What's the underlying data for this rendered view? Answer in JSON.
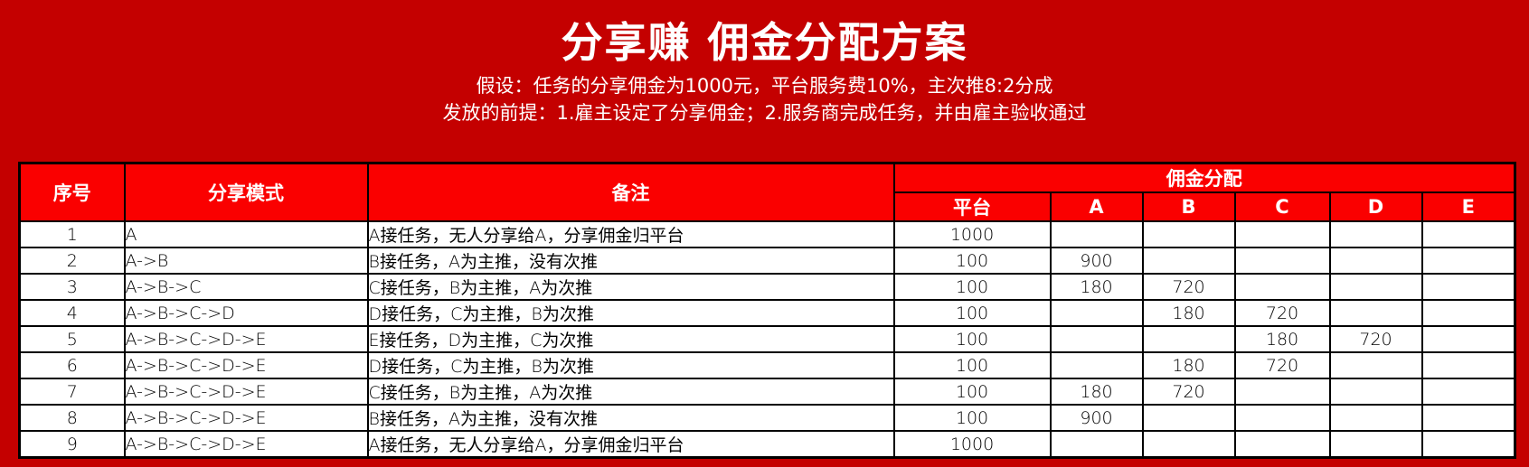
{
  "header": {
    "title": "分享赚 佣金分配方案",
    "subtitle_line1": "假设：任务的分享佣金为1000元，平台服务费10%，主次推8:2分成",
    "subtitle_line2": "发放的前提：1.雇主设定了分享佣金；2.服务商完成任务，并由雇主验收通过"
  },
  "colors": {
    "page_background": "#C40000",
    "table_header_red": "#FA0000",
    "cell_background": "#FFFFFF",
    "border": "#000000",
    "header_text": "#FFFFFF",
    "cell_text": "#000000"
  },
  "table": {
    "columns": {
      "index": "序号",
      "mode": "分享模式",
      "remark": "备注",
      "distribution_group": "佣金分配",
      "sub": [
        "平台",
        "A",
        "B",
        "C",
        "D",
        "E"
      ]
    },
    "rows": [
      {
        "index": "1",
        "mode": "A",
        "remark": "A接任务，无人分享给A，分享佣金归平台",
        "platform": "1000",
        "A": "",
        "B": "",
        "C": "",
        "D": "",
        "E": ""
      },
      {
        "index": "2",
        "mode": "A->B",
        "remark": "B接任务，A为主推，没有次推",
        "platform": "100",
        "A": "900",
        "B": "",
        "C": "",
        "D": "",
        "E": ""
      },
      {
        "index": "3",
        "mode": "A->B->C",
        "remark": "C接任务，B为主推，A为次推",
        "platform": "100",
        "A": "180",
        "B": "720",
        "C": "",
        "D": "",
        "E": ""
      },
      {
        "index": "4",
        "mode": "A->B->C->D",
        "remark": "D接任务，C为主推，B为次推",
        "platform": "100",
        "A": "",
        "B": "180",
        "C": "720",
        "D": "",
        "E": ""
      },
      {
        "index": "5",
        "mode": "A->B->C->D->E",
        "remark": "E接任务，D为主推，C为次推",
        "platform": "100",
        "A": "",
        "B": "",
        "C": "180",
        "D": "720",
        "E": ""
      },
      {
        "index": "6",
        "mode": "A->B->C->D->E",
        "remark": "D接任务，C为主推，B为次推",
        "platform": "100",
        "A": "",
        "B": "180",
        "C": "720",
        "D": "",
        "E": ""
      },
      {
        "index": "7",
        "mode": "A->B->C->D->E",
        "remark": "C接任务，B为主推，A为次推",
        "platform": "100",
        "A": "180",
        "B": "720",
        "C": "",
        "D": "",
        "E": ""
      },
      {
        "index": "8",
        "mode": "A->B->C->D->E",
        "remark": "B接任务，A为主推，没有次推",
        "platform": "100",
        "A": "900",
        "B": "",
        "C": "",
        "D": "",
        "E": ""
      },
      {
        "index": "9",
        "mode": "A->B->C->D->E",
        "remark": "A接任务，无人分享给A，分享佣金归平台",
        "platform": "1000",
        "A": "",
        "B": "",
        "C": "",
        "D": "",
        "E": ""
      }
    ]
  }
}
